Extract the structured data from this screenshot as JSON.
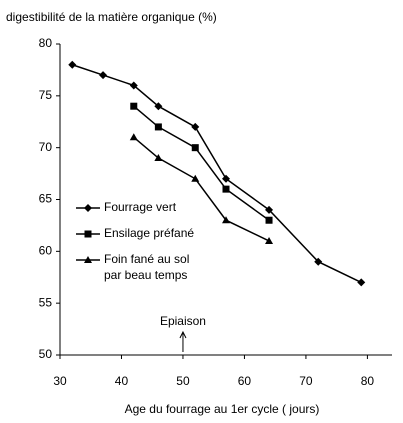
{
  "chart_data": {
    "type": "line",
    "title": "digestibilité de la matière organique (%)",
    "x_label": "Age du fourrage au 1er cycle ( jours)",
    "annotation": {
      "text": "Epiaison",
      "x": 50
    },
    "xlim": [
      30,
      84
    ],
    "xticks": [
      30,
      40,
      50,
      60,
      70,
      80
    ],
    "ylim": [
      50,
      80
    ],
    "yticks": [
      50,
      55,
      60,
      65,
      70,
      75,
      80
    ],
    "legend": "left",
    "series": [
      {
        "name": "Fourrage vert",
        "color": "#000000",
        "marker": "diamond",
        "x": [
          32,
          37,
          42,
          46,
          52,
          57,
          64,
          72,
          79
        ],
        "values": [
          78,
          77,
          76,
          74,
          72,
          67,
          64,
          59,
          57
        ]
      },
      {
        "name": "Ensilage préfané",
        "color": "#000000",
        "marker": "square",
        "x": [
          42,
          46,
          52,
          57,
          64
        ],
        "values": [
          74,
          72,
          70,
          66,
          63
        ]
      },
      {
        "name": "Foin fané au sol par beau temps",
        "color": "#000000",
        "marker": "triangle",
        "x": [
          42,
          46,
          52,
          57,
          64
        ],
        "values": [
          71,
          69,
          67,
          63,
          61
        ]
      }
    ]
  }
}
